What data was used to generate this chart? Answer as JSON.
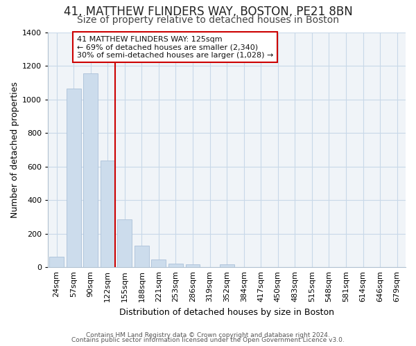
{
  "title": "41, MATTHEW FLINDERS WAY, BOSTON, PE21 8BN",
  "subtitle": "Size of property relative to detached houses in Boston",
  "xlabel": "Distribution of detached houses by size in Boston",
  "ylabel": "Number of detached properties",
  "bar_labels": [
    "24sqm",
    "57sqm",
    "90sqm",
    "122sqm",
    "155sqm",
    "188sqm",
    "221sqm",
    "253sqm",
    "286sqm",
    "319sqm",
    "352sqm",
    "384sqm",
    "417sqm",
    "450sqm",
    "483sqm",
    "515sqm",
    "548sqm",
    "581sqm",
    "614sqm",
    "646sqm",
    "679sqm"
  ],
  "bar_values": [
    65,
    1065,
    1155,
    635,
    285,
    130,
    48,
    22,
    18,
    0,
    18,
    0,
    0,
    0,
    0,
    0,
    0,
    0,
    0,
    0,
    0
  ],
  "bar_color": "#ccdcec",
  "bar_edge_color": "#aac0d8",
  "vline_color": "#cc0000",
  "annotation_text": "41 MATTHEW FLINDERS WAY: 125sqm\n← 69% of detached houses are smaller (2,340)\n30% of semi-detached houses are larger (1,028) →",
  "annotation_box_facecolor": "#ffffff",
  "annotation_box_edgecolor": "#cc0000",
  "ylim": [
    0,
    1400
  ],
  "yticks": [
    0,
    200,
    400,
    600,
    800,
    1000,
    1200,
    1400
  ],
  "footer1": "Contains HM Land Registry data © Crown copyright and database right 2024.",
  "footer2": "Contains public sector information licensed under the Open Government Licence v3.0.",
  "title_fontsize": 12,
  "subtitle_fontsize": 10,
  "ylabel_fontsize": 9,
  "xlabel_fontsize": 9,
  "tick_fontsize": 8,
  "annot_fontsize": 8,
  "footer_fontsize": 6.5,
  "grid_color": "#c8d8e8",
  "background_color": "#f0f4f8"
}
